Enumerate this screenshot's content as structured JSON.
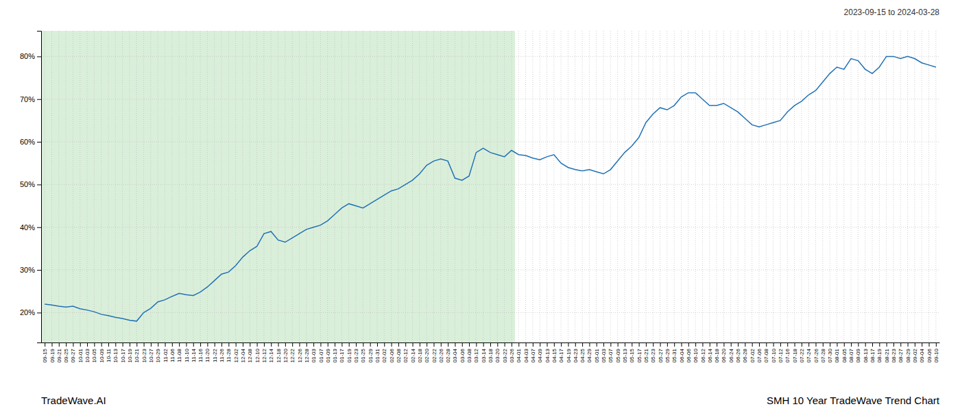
{
  "chart_data": {
    "type": "line",
    "title": "SMH 10 Year TradeWave Trend Chart",
    "subtitle": "2023-09-15 to 2024-03-28",
    "annotations": [
      "TradeWave.AI"
    ],
    "color": "#2171b5",
    "grid": true,
    "shade": {
      "from": "09-15",
      "to": "03-26",
      "color": "#d4ecd4"
    },
    "ylim": [
      13,
      86
    ],
    "yticks": [
      {
        "value": 20,
        "label": "20%"
      },
      {
        "value": 30,
        "label": "30%"
      },
      {
        "value": 40,
        "label": "40%"
      },
      {
        "value": 50,
        "label": "50%"
      },
      {
        "value": 60,
        "label": "60%"
      },
      {
        "value": 70,
        "label": "70%"
      },
      {
        "value": 80,
        "label": "80%"
      }
    ],
    "categories": [
      "09-15",
      "09-19",
      "09-21",
      "09-25",
      "09-27",
      "10-01",
      "10-03",
      "10-05",
      "10-09",
      "10-11",
      "10-13",
      "10-17",
      "10-19",
      "10-21",
      "10-23",
      "10-27",
      "10-29",
      "11-02",
      "11-06",
      "11-08",
      "11-10",
      "11-14",
      "11-16",
      "11-20",
      "11-22",
      "11-26",
      "11-28",
      "12-02",
      "12-04",
      "12-08",
      "12-10",
      "12-12",
      "12-14",
      "12-18",
      "12-20",
      "12-22",
      "12-26",
      "12-28",
      "01-03",
      "01-07",
      "01-09",
      "01-13",
      "01-17",
      "01-19",
      "01-23",
      "01-25",
      "01-29",
      "01-31",
      "02-02",
      "02-06",
      "02-08",
      "02-12",
      "02-14",
      "02-18",
      "02-20",
      "02-22",
      "02-26",
      "02-28",
      "03-04",
      "03-06",
      "03-08",
      "03-12",
      "03-14",
      "03-18",
      "03-20",
      "03-22",
      "03-26",
      "04-01",
      "04-03",
      "04-07",
      "04-09",
      "04-13",
      "04-15",
      "04-17",
      "04-19",
      "04-23",
      "04-25",
      "04-29",
      "05-01",
      "05-03",
      "05-07",
      "05-09",
      "05-13",
      "05-15",
      "05-17",
      "05-21",
      "05-23",
      "05-27",
      "05-29",
      "05-31",
      "06-04",
      "06-06",
      "06-10",
      "06-12",
      "06-14",
      "06-18",
      "06-20",
      "06-24",
      "06-26",
      "06-28",
      "07-02",
      "07-06",
      "07-08",
      "07-10",
      "07-12",
      "07-16",
      "07-18",
      "07-22",
      "07-24",
      "07-26",
      "07-28",
      "07-30",
      "08-01",
      "08-05",
      "08-07",
      "08-09",
      "08-13",
      "08-17",
      "08-19",
      "08-21",
      "08-23",
      "08-27",
      "08-29",
      "09-02",
      "09-04",
      "09-06",
      "09-10"
    ],
    "values": [
      22.0,
      21.8,
      21.5,
      21.3,
      21.5,
      20.9,
      20.6,
      20.2,
      19.6,
      19.3,
      18.9,
      18.6,
      18.2,
      18.0,
      20.0,
      21.0,
      22.5,
      23.0,
      23.8,
      24.5,
      24.2,
      24.0,
      24.8,
      26.0,
      27.5,
      29.0,
      29.5,
      31.0,
      33.0,
      34.5,
      35.5,
      38.5,
      39.0,
      37.0,
      36.5,
      37.5,
      38.5,
      39.5,
      40.0,
      40.5,
      41.5,
      43.0,
      44.5,
      45.5,
      45.0,
      44.5,
      45.5,
      46.5,
      47.5,
      48.5,
      49.0,
      50.0,
      51.0,
      52.5,
      54.5,
      55.5,
      56.0,
      55.5,
      51.5,
      51.0,
      52.0,
      57.5,
      58.5,
      57.5,
      57.0,
      56.5,
      58.0,
      57.0,
      56.8,
      56.2,
      55.8,
      56.5,
      57.0,
      55.0,
      54.0,
      53.5,
      53.2,
      53.5,
      53.0,
      52.5,
      53.5,
      55.5,
      57.5,
      59.0,
      61.0,
      64.5,
      66.5,
      68.0,
      67.5,
      68.5,
      70.5,
      71.5,
      71.5,
      70.0,
      68.5,
      68.5,
      69.0,
      68.0,
      67.0,
      65.5,
      64.0,
      63.5,
      64.0,
      64.5,
      65.0,
      67.0,
      68.5,
      69.5,
      71.0,
      72.0,
      74.0,
      76.0,
      77.5,
      77.0,
      79.5,
      79.0,
      77.0,
      76.0,
      77.5,
      80.0,
      80.0,
      79.5,
      80.0,
      79.5,
      78.5,
      78.0,
      77.5
    ]
  }
}
